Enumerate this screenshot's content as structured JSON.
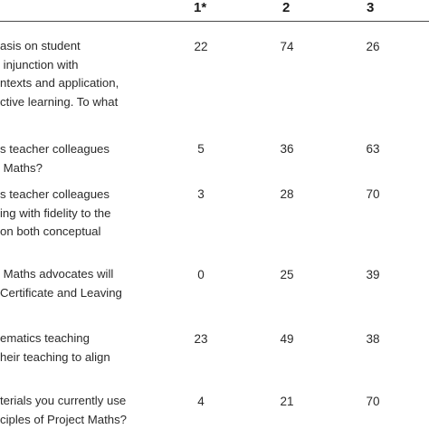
{
  "table": {
    "columns": [
      "1*",
      "2",
      "3"
    ],
    "rows": [
      {
        "lines": [
          "asis on student",
          " injunction with",
          "ntexts and application,",
          "ctive learning. To what"
        ],
        "values": [
          "22",
          "74",
          "26"
        ]
      },
      {
        "lines": [
          "s teacher colleagues",
          " Maths?"
        ],
        "values": [
          "5",
          "36",
          "63"
        ]
      },
      {
        "lines": [
          "s teacher colleagues",
          "ing with fidelity to the",
          "on both conceptual"
        ],
        "values": [
          "3",
          "28",
          "70"
        ]
      },
      {
        "lines": [
          " Maths advocates will",
          "Certificate and Leaving"
        ],
        "values": [
          "0",
          "25",
          "39"
        ]
      },
      {
        "lines": [
          "ematics teaching",
          "heir teaching to align"
        ],
        "values": [
          "23",
          "49",
          "38"
        ]
      },
      {
        "lines": [
          "terials you currently use",
          "ciples of Project Maths?"
        ],
        "values": [
          "4",
          "21",
          "70"
        ]
      }
    ]
  }
}
